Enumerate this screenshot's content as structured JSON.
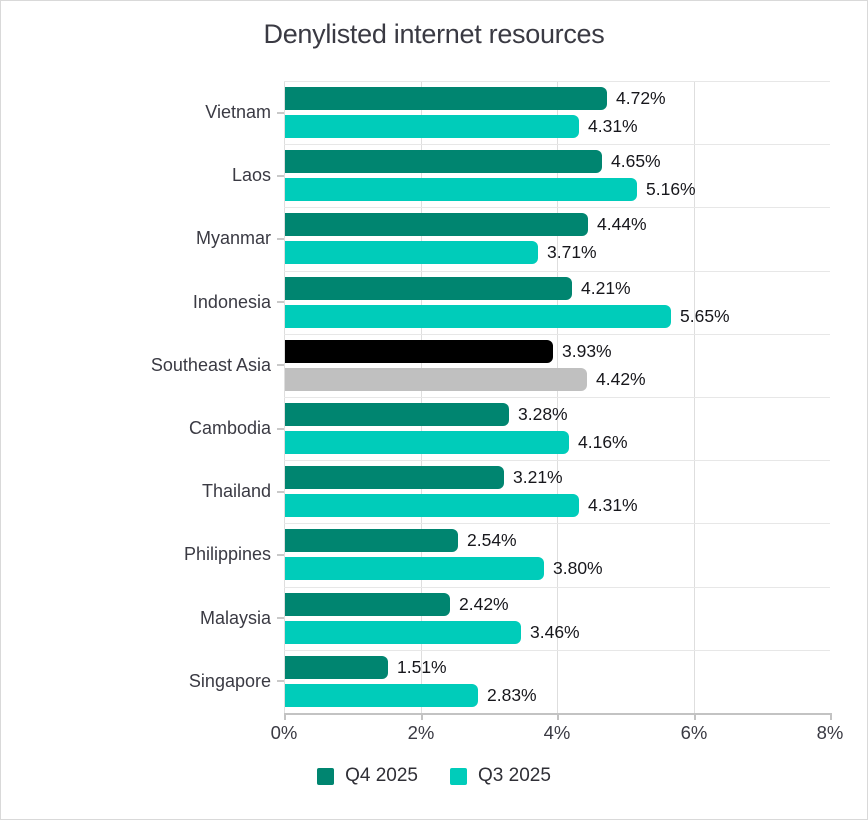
{
  "title": "Denylisted internet resources",
  "legend": [
    {
      "label": "Q4 2025",
      "color": "#008570"
    },
    {
      "label": "Q3 2025",
      "color": "#00ccba"
    }
  ],
  "chart_data": {
    "type": "bar",
    "orientation": "horizontal",
    "title": "Denylisted internet resources",
    "categories": [
      "Vietnam",
      "Laos",
      "Myanmar",
      "Indonesia",
      "Southeast Asia",
      "Cambodia",
      "Thailand",
      "Philippines",
      "Malaysia",
      "Singapore"
    ],
    "series": [
      {
        "name": "Q4 2025",
        "color": "#008570",
        "values": [
          4.72,
          4.65,
          4.44,
          4.21,
          3.93,
          3.28,
          3.21,
          2.54,
          2.42,
          1.51
        ],
        "labels": [
          "4.72%",
          "4.65%",
          "4.44%",
          "4.21%",
          "3.93%",
          "3.28%",
          "3.21%",
          "2.54%",
          "2.42%",
          "1.51%"
        ]
      },
      {
        "name": "Q3 2025",
        "color": "#00ccba",
        "values": [
          4.31,
          5.16,
          3.71,
          5.65,
          4.42,
          4.16,
          4.31,
          3.8,
          3.46,
          2.83
        ],
        "labels": [
          "4.31%",
          "5.16%",
          "3.71%",
          "5.65%",
          "4.42%",
          "4.16%",
          "4.31%",
          "3.80%",
          "3.46%",
          "2.83%"
        ]
      }
    ],
    "highlight_category": "Southeast Asia",
    "highlight_colors": {
      "Q4 2025": "#000000",
      "Q3 2025": "#c0c0c0"
    },
    "x_axis": {
      "min": 0,
      "max": 8,
      "ticks": [
        "0%",
        "2%",
        "4%",
        "6%",
        "8%"
      ],
      "gridlines_at": [
        0,
        2,
        4,
        6
      ]
    },
    "grid": true,
    "legend_position": "bottom",
    "value_labels": "outside-end"
  }
}
